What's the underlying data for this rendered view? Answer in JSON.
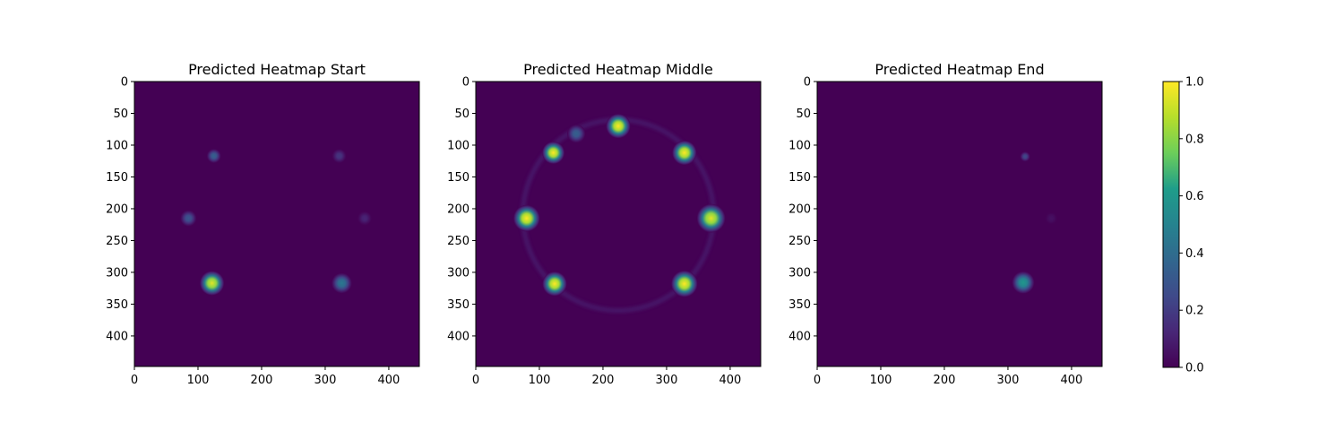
{
  "chart_data": [
    {
      "type": "heatmap",
      "title": "Predicted Heatmap Start",
      "x_ticks": [
        0,
        100,
        200,
        300,
        400
      ],
      "y_ticks": [
        0,
        50,
        100,
        150,
        200,
        250,
        300,
        350,
        400
      ],
      "xlim": [
        0,
        448
      ],
      "ylim": [
        448,
        0
      ],
      "background_value": 0.0,
      "blobs": [
        {
          "x": 122,
          "y": 317,
          "value": 0.95,
          "r": 12
        },
        {
          "x": 326,
          "y": 317,
          "value": 0.45,
          "r": 10
        },
        {
          "x": 125,
          "y": 117,
          "value": 0.35,
          "r": 7
        },
        {
          "x": 322,
          "y": 117,
          "value": 0.18,
          "r": 7
        },
        {
          "x": 85,
          "y": 215,
          "value": 0.3,
          "r": 8
        },
        {
          "x": 362,
          "y": 215,
          "value": 0.12,
          "r": 7
        }
      ]
    },
    {
      "type": "heatmap",
      "title": "Predicted Heatmap Middle",
      "x_ticks": [
        0,
        100,
        200,
        300,
        400
      ],
      "y_ticks": [
        0,
        50,
        100,
        150,
        200,
        250,
        300,
        350,
        400
      ],
      "xlim": [
        0,
        448
      ],
      "ylim": [
        448,
        0
      ],
      "background_value": 0.0,
      "ring": {
        "cx": 224,
        "cy": 210,
        "r": 150,
        "value": 0.12
      },
      "blobs": [
        {
          "x": 224,
          "y": 70,
          "value": 1.0,
          "r": 12
        },
        {
          "x": 122,
          "y": 112,
          "value": 1.0,
          "r": 11
        },
        {
          "x": 328,
          "y": 112,
          "value": 1.0,
          "r": 12
        },
        {
          "x": 80,
          "y": 215,
          "value": 1.0,
          "r": 13
        },
        {
          "x": 370,
          "y": 215,
          "value": 0.95,
          "r": 14
        },
        {
          "x": 124,
          "y": 318,
          "value": 1.0,
          "r": 12
        },
        {
          "x": 328,
          "y": 318,
          "value": 1.0,
          "r": 13
        },
        {
          "x": 158,
          "y": 82,
          "value": 0.35,
          "r": 9
        }
      ]
    },
    {
      "type": "heatmap",
      "title": "Predicted Heatmap End",
      "x_ticks": [
        0,
        100,
        200,
        300,
        400
      ],
      "y_ticks": [
        0,
        50,
        100,
        150,
        200,
        250,
        300,
        350,
        400
      ],
      "xlim": [
        0,
        448
      ],
      "ylim": [
        448,
        0
      ],
      "background_value": 0.0,
      "blobs": [
        {
          "x": 324,
          "y": 316,
          "value": 0.6,
          "r": 11
        },
        {
          "x": 327,
          "y": 118,
          "value": 0.25,
          "r": 5
        },
        {
          "x": 368,
          "y": 215,
          "value": 0.05,
          "r": 6
        }
      ]
    }
  ],
  "colorbar": {
    "ticks": [
      "0.0",
      "0.2",
      "0.4",
      "0.6",
      "0.8",
      "1.0"
    ],
    "range": [
      0,
      1
    ],
    "colormap": "viridis"
  },
  "colors": {
    "viridis": [
      "#440154",
      "#482777",
      "#3f4a8a",
      "#31678e",
      "#26838f",
      "#1f9d8a",
      "#6cce5a",
      "#b6de2b",
      "#fee825"
    ]
  }
}
